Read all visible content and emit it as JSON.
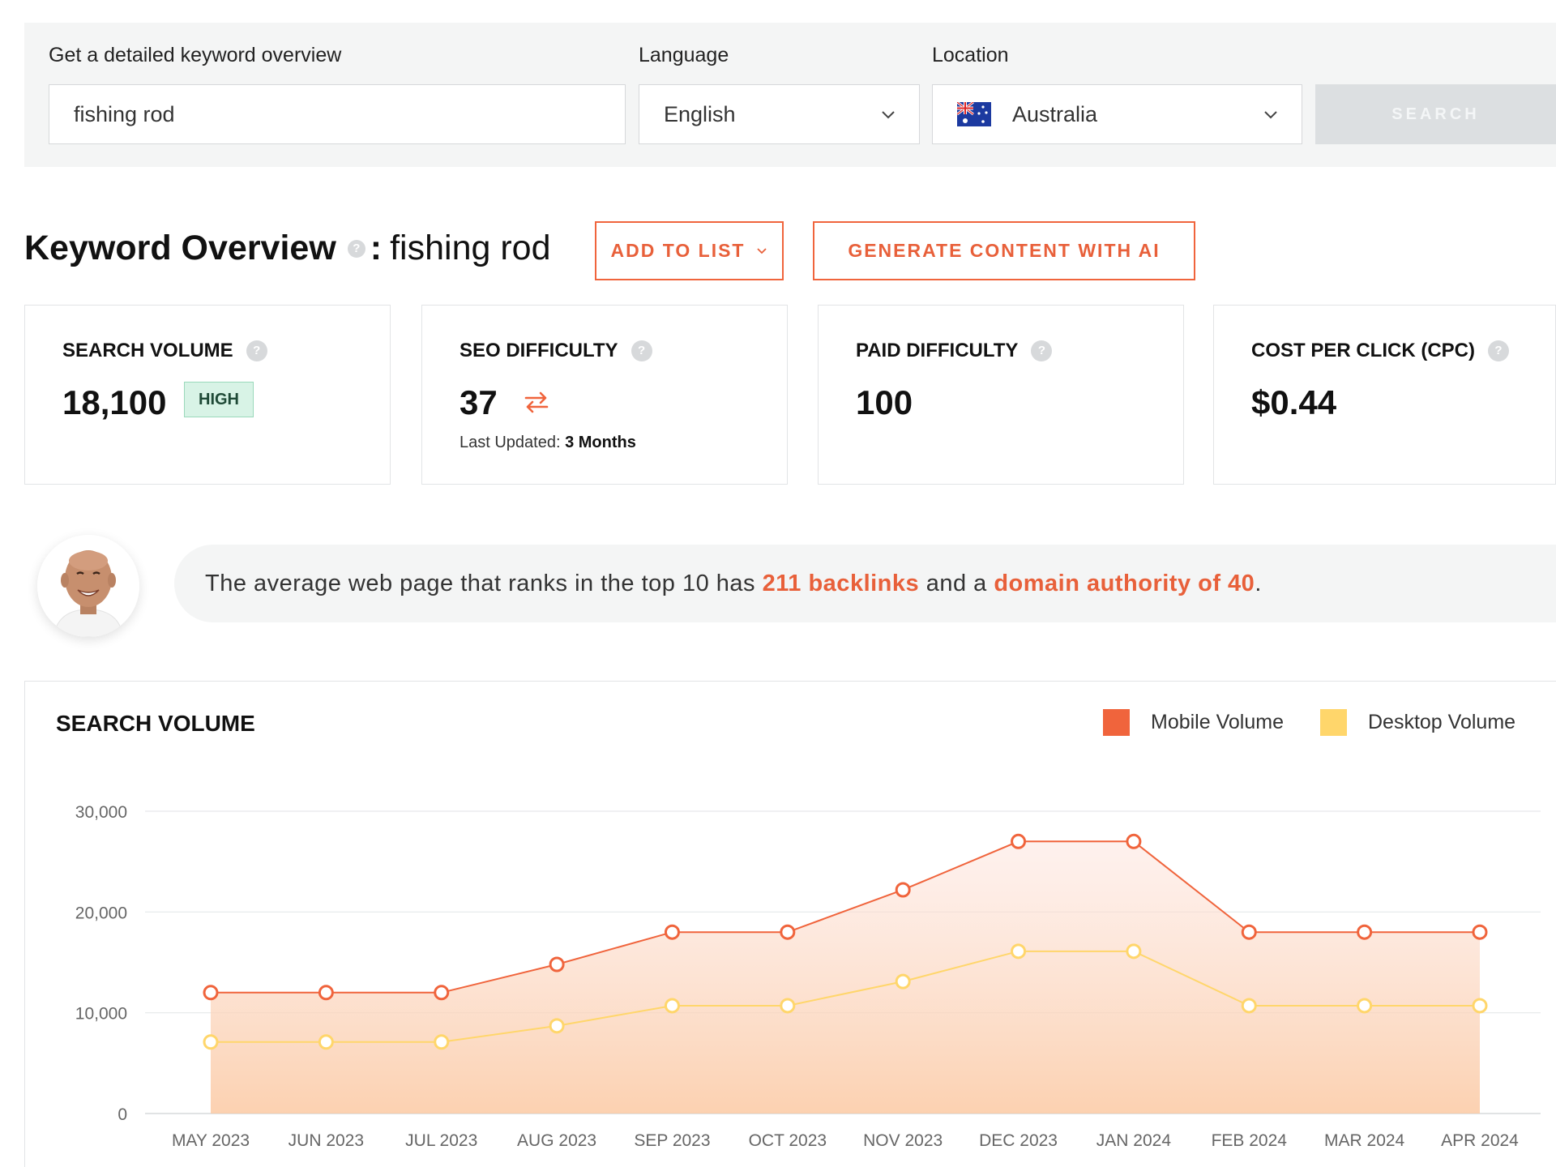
{
  "search": {
    "keyword_label": "Get a detailed keyword overview",
    "keyword_value": "fishing rod",
    "language_label": "Language",
    "language_value": "English",
    "location_label": "Location",
    "location_value": "Australia",
    "location_flag_icon": "australia-flag-icon",
    "search_button": "SEARCH"
  },
  "overview": {
    "title": "Keyword Overview",
    "help_icon": "?",
    "separator": ":",
    "keyword": "fishing rod",
    "add_to_list": "ADD TO LIST",
    "generate_ai": "GENERATE CONTENT WITH AI"
  },
  "metrics": {
    "search_volume": {
      "label": "SEARCH VOLUME",
      "value": "18,100",
      "badge": "HIGH"
    },
    "seo_difficulty": {
      "label": "SEO DIFFICULTY",
      "value": "37",
      "last_updated_label": "Last Updated:",
      "last_updated_value": "3 Months"
    },
    "paid_difficulty": {
      "label": "PAID DIFFICULTY",
      "value": "100"
    },
    "cpc": {
      "label": "COST PER CLICK (CPC)",
      "value": "$0.44"
    }
  },
  "tip": {
    "prefix": "The average web page that ranks in the top 10 has ",
    "backlinks": "211 backlinks",
    "middle": " and a ",
    "authority": "domain authority of 40",
    "suffix": "."
  },
  "colors": {
    "accent": "#f0643c",
    "mobile": "#f0643c",
    "desktop": "#ffd66b"
  },
  "chart_data": {
    "type": "area",
    "title": "SEARCH VOLUME",
    "categories": [
      "MAY 2023",
      "JUN 2023",
      "JUL 2023",
      "AUG 2023",
      "SEP 2023",
      "OCT 2023",
      "NOV 2023",
      "DEC 2023",
      "JAN 2024",
      "FEB 2024",
      "MAR 2024",
      "APR 2024"
    ],
    "series": [
      {
        "name": "Mobile Volume",
        "color": "#f0643c",
        "values": [
          12000,
          12000,
          12000,
          14800,
          18000,
          18000,
          22200,
          27000,
          27000,
          18000,
          18000,
          18000
        ]
      },
      {
        "name": "Desktop Volume",
        "color": "#ffd66b",
        "values": [
          7100,
          7100,
          7100,
          8700,
          10700,
          10700,
          13100,
          16100,
          16100,
          10700,
          10700,
          10700
        ]
      }
    ],
    "yticks": [
      "0",
      "10,000",
      "20,000",
      "30,000"
    ],
    "ylim": [
      0,
      30000
    ],
    "grid": true,
    "legend": "top-right"
  }
}
